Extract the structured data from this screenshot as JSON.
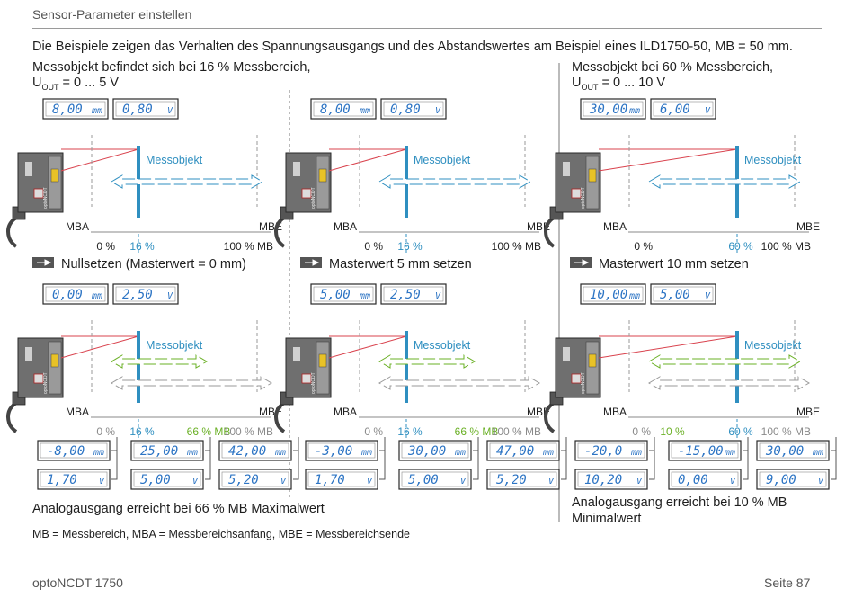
{
  "header": {
    "section_title": "Sensor-Parameter einstellen"
  },
  "intro": "Die Beispiele zeigen das Verhalten des Spannungsausgangs und des Abstandswertes am Beispiel eines ILD1750-50, MB = 50 mm.",
  "columns": [
    {
      "title": "Messobjekt befindet sich bei 16 % Messbereich,",
      "uout_prefix": "U",
      "uout_sub": "OUT",
      "uout_rest": "= 0 ... 5 V"
    },
    {
      "title": "",
      "uout_prefix": "",
      "uout_sub": "",
      "uout_rest": ""
    },
    {
      "title": "Messobjekt bei 60 % Messbereich,",
      "uout_prefix": "U",
      "uout_sub": "OUT",
      "uout_rest": "= 0 ... 10 V"
    }
  ],
  "labels": {
    "target": "Messobjekt",
    "mba": "MBA",
    "mbe": "MBE",
    "watermark": "optoNCDT"
  },
  "top_row": [
    {
      "dist": "8,00",
      "dist_unit": "mm",
      "volt": "0,80",
      "volt_unit": "V",
      "pct": [
        "0 %",
        "16 %",
        "100 % MB"
      ]
    },
    {
      "dist": "8,00",
      "dist_unit": "mm",
      "volt": "0,80",
      "volt_unit": "V",
      "pct": [
        "0 %",
        "16 %",
        "100 % MB"
      ]
    },
    {
      "dist": "30,00",
      "dist_unit": "mm",
      "volt": "6,00",
      "volt_unit": "V",
      "pct": [
        "0 %",
        "60 %",
        "100 % MB"
      ]
    }
  ],
  "actions": [
    "Nullsetzen (Masterwert = 0 mm)",
    "Masterwert 5 mm setzen",
    "Masterwert 10 mm setzen"
  ],
  "bottom_row": [
    {
      "dist": "0,00",
      "dist_unit": "mm",
      "volt": "2,50",
      "volt_unit": "V",
      "pct": [
        "0 %",
        "16 %",
        "66 % MB",
        "100 % MB"
      ],
      "readouts": [
        {
          "dist": "-8,00",
          "volt": "1,70"
        },
        {
          "dist": "25,00",
          "volt": "5,00"
        },
        {
          "dist": "42,00",
          "volt": "5,20"
        }
      ]
    },
    {
      "dist": "5,00",
      "dist_unit": "mm",
      "volt": "2,50",
      "volt_unit": "V",
      "pct": [
        "0 %",
        "16 %",
        "66 % MB",
        "100 % MB"
      ],
      "readouts": [
        {
          "dist": "-3,00",
          "volt": "1,70"
        },
        {
          "dist": "30,00",
          "volt": "5,00"
        },
        {
          "dist": "47,00",
          "volt": "5,20"
        }
      ]
    },
    {
      "dist": "10,00",
      "dist_unit": "mm",
      "volt": "5,00",
      "volt_unit": "V",
      "pct": [
        "0 %",
        "10 %",
        "60 %",
        "100 % MB"
      ],
      "readouts": [
        {
          "dist": "-20,0",
          "volt": "10,20"
        },
        {
          "dist": "-15,00",
          "volt": "0,00"
        },
        {
          "dist": "30,00",
          "volt": "9,00"
        }
      ]
    }
  ],
  "conclusions": [
    "Analogausgang erreicht bei 66 % MB Maximalwert",
    "",
    "Analogausgang erreicht bei 10 % MB Minimalwert"
  ],
  "legend": "MB = Messbereich, MBA = Messbereichsanfang, MBE = Messbereichsende",
  "footer": {
    "product": "optoNCDT 1750",
    "page": "Seite 87"
  },
  "colors": {
    "blue": "#2f8fc0",
    "green": "#6ab025",
    "laser": "#d9434e",
    "lcd": "#2c74c4"
  }
}
